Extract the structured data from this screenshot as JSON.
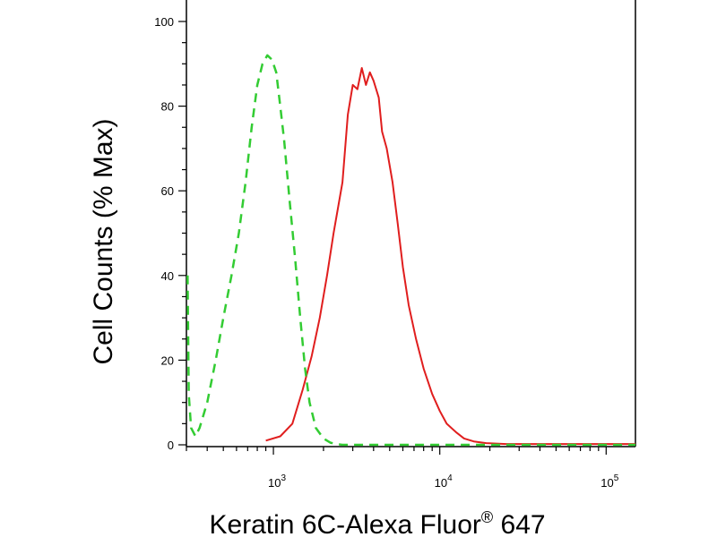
{
  "chart_data": {
    "type": "line",
    "xlabel": "Keratin 6C-Alexa Fluor",
    "xlabel_sup": "®",
    "xlabel_suffix": " 647",
    "ylabel": "Cell Counts (% Max)",
    "x_scale": "log",
    "xlim": [
      300,
      150000
    ],
    "ylim": [
      0,
      100
    ],
    "y_ticks": [
      0,
      20,
      40,
      60,
      80,
      100
    ],
    "x_ticks": [
      {
        "value": 1000,
        "base": "10",
        "exp": "3"
      },
      {
        "value": 10000,
        "base": "10",
        "exp": "4"
      },
      {
        "value": 100000,
        "base": "10",
        "exp": "5"
      }
    ],
    "grid": false,
    "series": [
      {
        "color": "#e01e1e",
        "style": "solid",
        "x": [
          900,
          1100,
          1300,
          1500,
          1700,
          1900,
          2100,
          2300,
          2600,
          2800,
          3000,
          3200,
          3400,
          3600,
          3800,
          4000,
          4300,
          4500,
          4800,
          5200,
          5600,
          6000,
          6500,
          7200,
          8000,
          9000,
          10000,
          11000,
          12500,
          14000,
          16000,
          19000,
          25000,
          40000,
          70000,
          150000
        ],
        "y": [
          1,
          2,
          5,
          13,
          21,
          30,
          40,
          50,
          62,
          78,
          85,
          84,
          89,
          85,
          88,
          86,
          82,
          74,
          70,
          62,
          52,
          42,
          33,
          25,
          18,
          12,
          8,
          5,
          3,
          1.5,
          0.8,
          0.4,
          0.2,
          0.2,
          0.2,
          0.2
        ]
      },
      {
        "color": "#33cc33",
        "style": "dashed",
        "x": [
          305,
          310,
          320,
          340,
          360,
          400,
          450,
          500,
          560,
          620,
          680,
          740,
          800,
          860,
          920,
          980,
          1040,
          1100,
          1160,
          1250,
          1350,
          1450,
          1550,
          1650,
          1800,
          2000,
          2200,
          2400,
          2600,
          3000,
          5000,
          20000,
          150000
        ],
        "y": [
          40,
          12,
          4,
          2,
          4,
          10,
          20,
          30,
          40,
          50,
          62,
          75,
          85,
          90,
          92,
          91,
          88,
          80,
          72,
          58,
          44,
          30,
          18,
          10,
          4,
          1.5,
          0.5,
          0.2,
          0,
          0,
          0,
          0,
          0
        ]
      }
    ]
  }
}
